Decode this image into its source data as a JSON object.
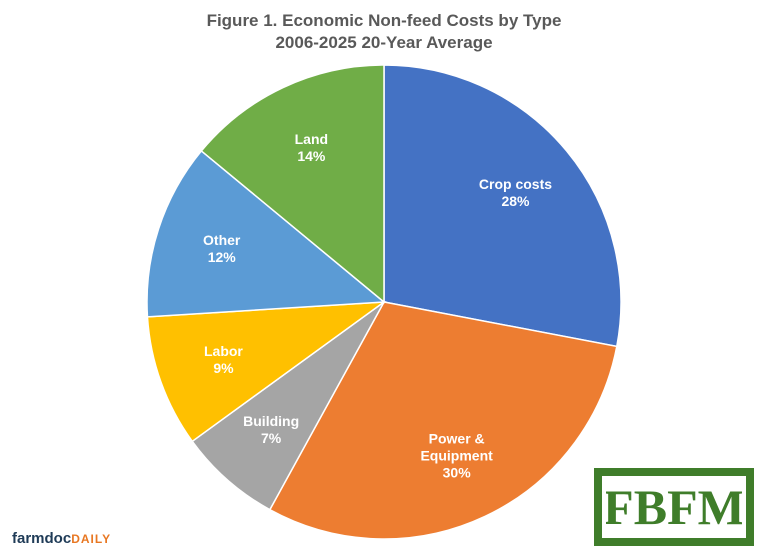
{
  "chart_data": {
    "type": "pie",
    "title": "Figure 1.  Economic Non-feed Costs by Type",
    "subtitle": "2006-2025 20-Year Average",
    "categories": [
      "Crop costs",
      "Power & Equipment",
      "Building",
      "Labor",
      "Other",
      "Land"
    ],
    "values": [
      28,
      30,
      7,
      9,
      12,
      14
    ],
    "value_labels": [
      "28%",
      "30%",
      "7%",
      "9%",
      "12%",
      "14%"
    ],
    "colors": [
      "#4472C4",
      "#ED7D31",
      "#A5A5A5",
      "#FFC000",
      "#5B9BD5",
      "#70AD47"
    ]
  },
  "logos": {
    "farmdoc": "farmdoc",
    "daily": "DAILY",
    "fbfm": "FBFM"
  }
}
